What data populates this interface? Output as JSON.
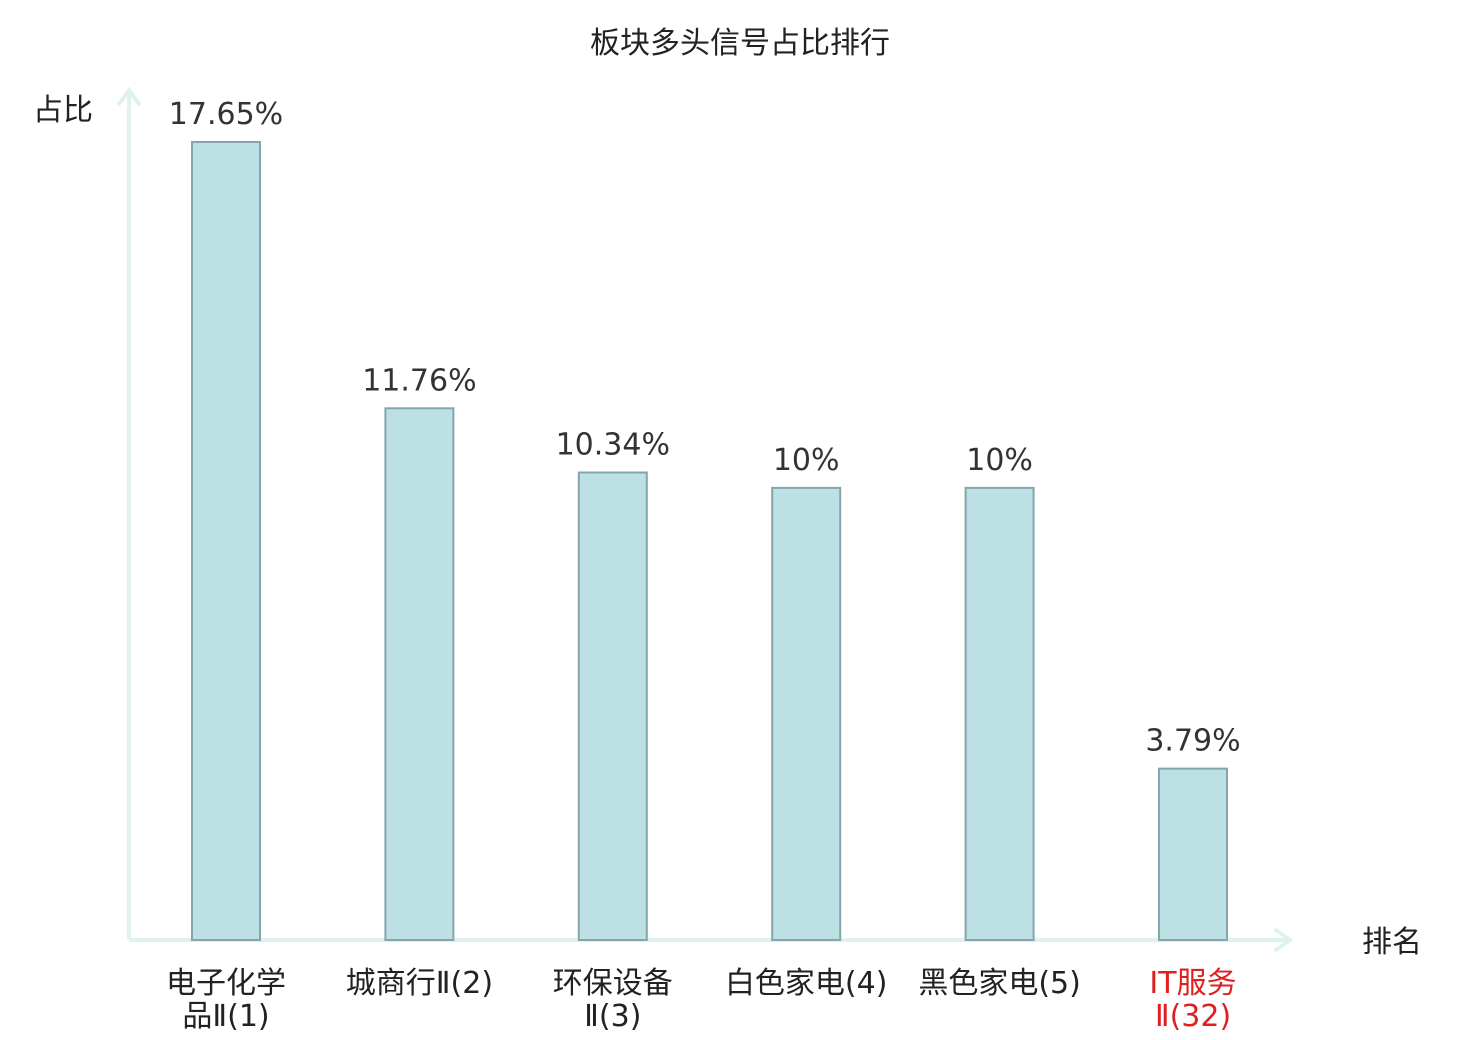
{
  "chart_data": {
    "type": "bar",
    "title": "板块多头信号占比排行",
    "xlabel": "排名",
    "ylabel": "占比",
    "ylim": [
      0,
      18.8
    ],
    "grid": false,
    "legend": "none",
    "categories": [
      [
        "电子化学",
        "品Ⅱ(1)"
      ],
      [
        "城商行Ⅱ(2)"
      ],
      [
        "环保设备",
        "Ⅱ(3)"
      ],
      [
        "白色家电(4)"
      ],
      [
        "黑色家电(5)"
      ],
      [
        "IT服务",
        "Ⅱ(32)"
      ]
    ],
    "values": [
      17.65,
      11.76,
      10.34,
      10,
      10,
      3.79
    ],
    "value_labels": [
      "17.65%",
      "11.76%",
      "10.34%",
      "10%",
      "10%",
      "3.79%"
    ],
    "highlight_index": 5,
    "colors": {
      "bar_fill": "#bce0e3",
      "bar_stroke": "#84a6aa",
      "axis": "#e0f2ef",
      "text": "#222222",
      "value_text": "#333333",
      "highlight_text": "#e02020"
    }
  }
}
